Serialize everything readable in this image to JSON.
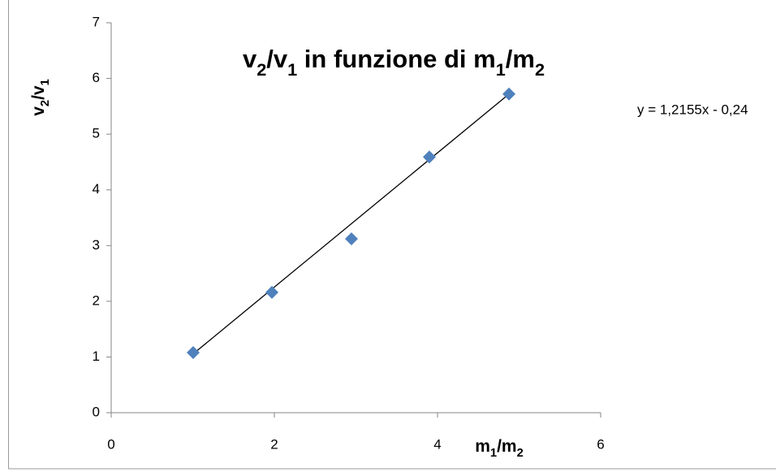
{
  "chart_data": {
    "type": "scatter",
    "title": "v2/v1 in funzione di m1/m2",
    "x_label": "m1/m2",
    "y_label": "v2/v1",
    "series": [
      {
        "name": "v2/v1",
        "color": "#4f81bd",
        "x": [
          1.005,
          1.97,
          2.945,
          3.9,
          4.876
        ],
        "values": [
          1.08,
          2.16,
          3.12,
          4.59,
          5.72
        ]
      }
    ],
    "trendline": {
      "label": "y = 1,2155x - 0,24",
      "color": "#000000",
      "x": [
        1.0,
        4.876
      ],
      "values": [
        1.05,
        5.72
      ]
    },
    "xlim": [
      0,
      6
    ],
    "xticks": [
      0,
      2,
      4,
      6
    ],
    "ylim": [
      0,
      7
    ],
    "yticks": [
      0,
      1,
      2,
      3,
      4,
      5,
      6,
      7
    ]
  }
}
